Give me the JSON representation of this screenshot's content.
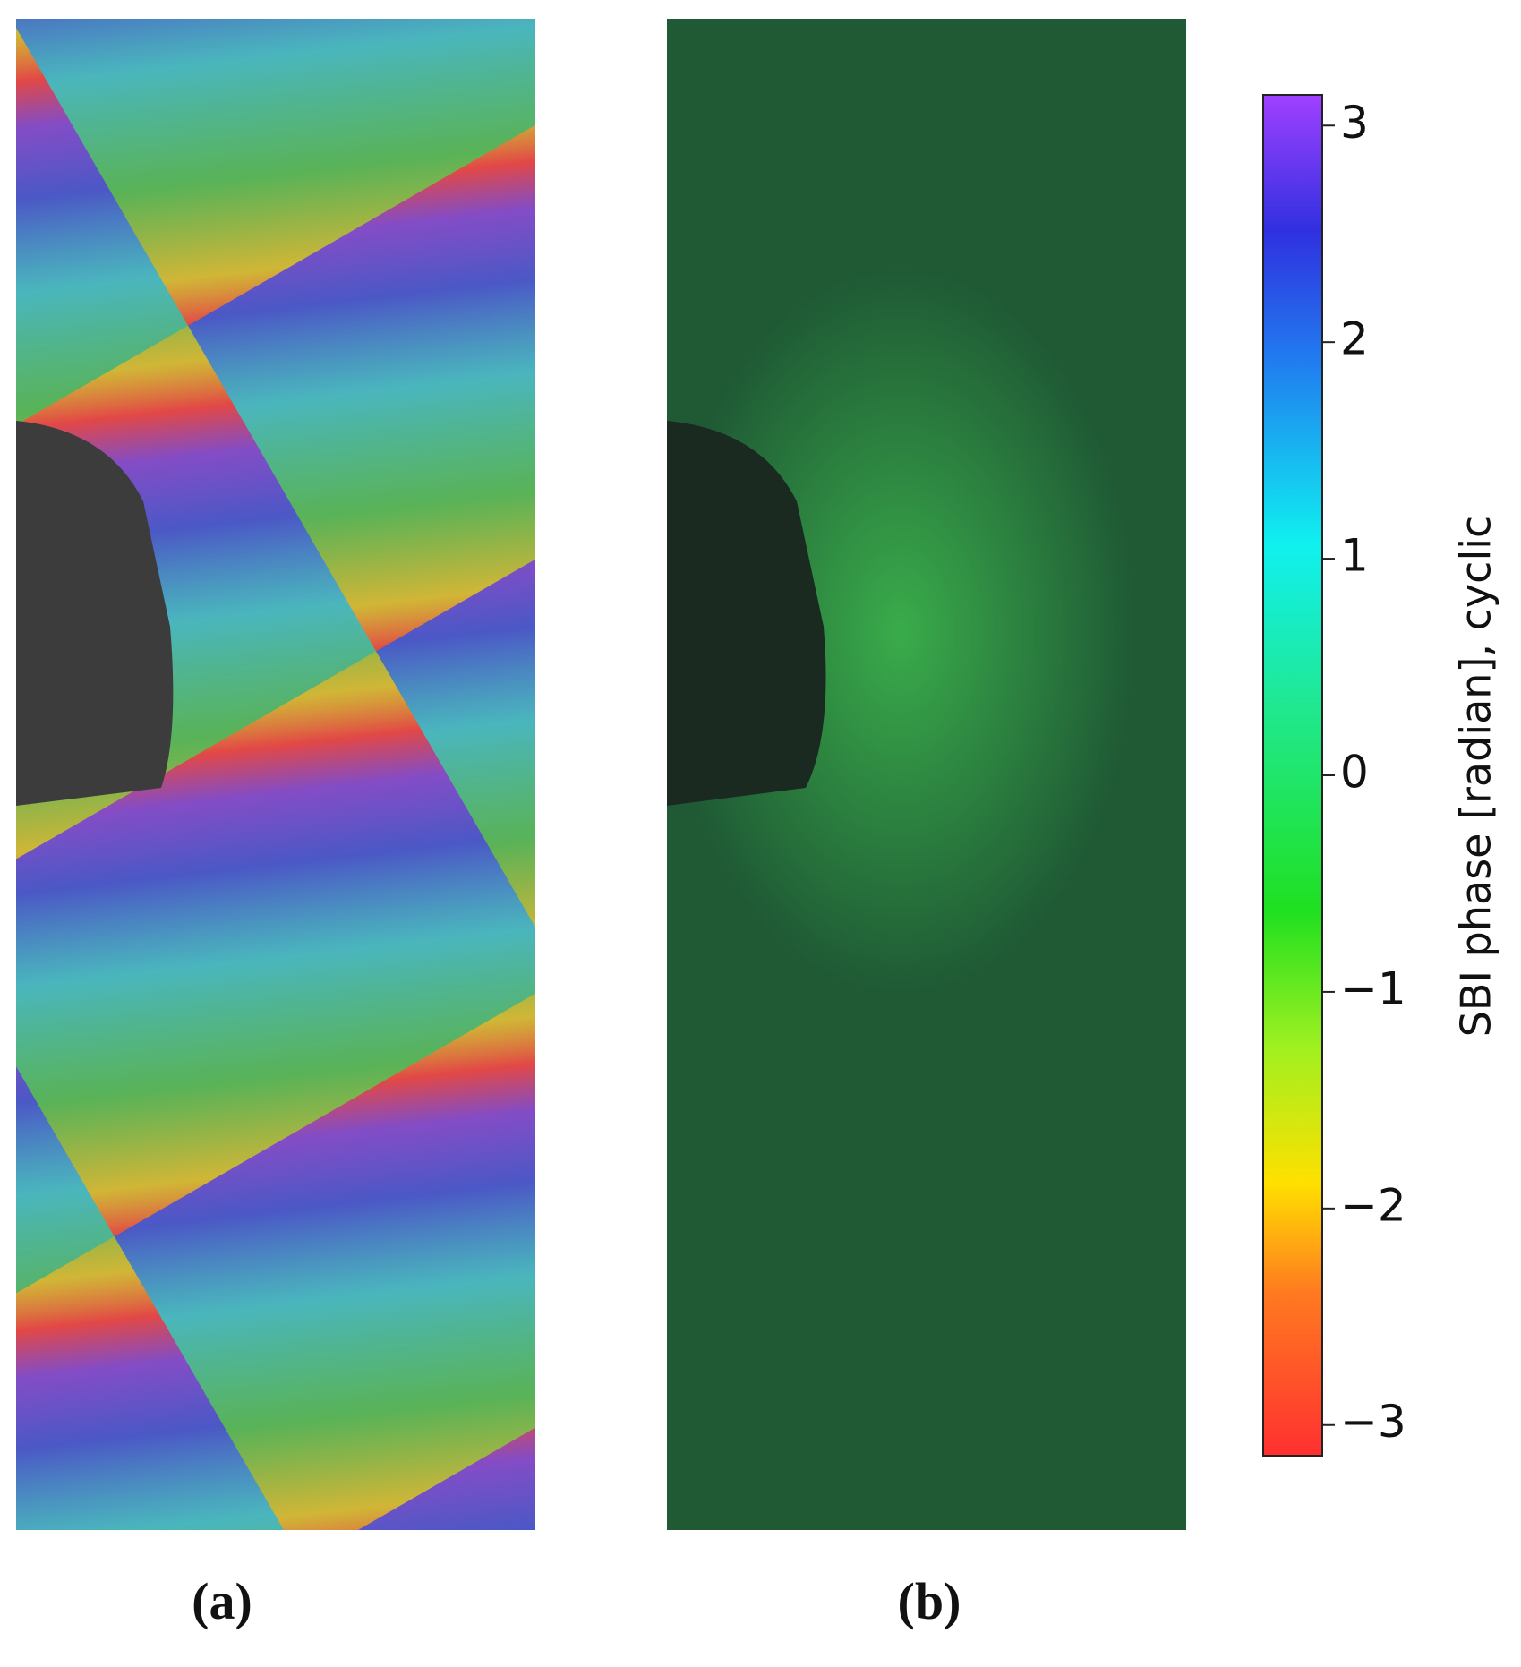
{
  "panels": [
    {
      "label": "(a)"
    },
    {
      "label": "(b)"
    }
  ],
  "colorbar": {
    "label": "SBI phase [radian], cyclic",
    "lim": [
      -3.14159,
      3.14159
    ],
    "ticks": [
      {
        "value": -3,
        "label": "−3"
      },
      {
        "value": -2,
        "label": "−2"
      },
      {
        "value": -1,
        "label": "−1"
      },
      0,
      1,
      2,
      3
    ]
  }
}
